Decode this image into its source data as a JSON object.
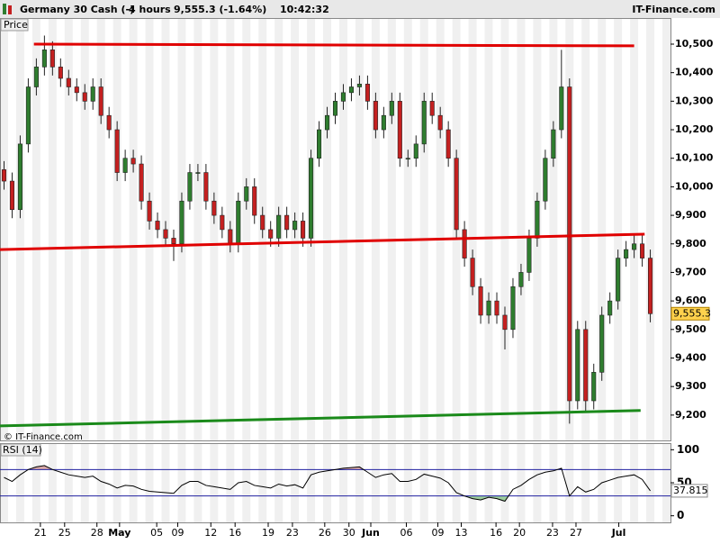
{
  "chart_data": {
    "type": "candlestick",
    "header": {
      "instrument": "Germany 30 Cash (-)",
      "interval": "4 hours",
      "change": "9,555.3 (-1.64%)",
      "time": "10:42:32",
      "site": "IT-Finance.com"
    },
    "panel_label": "Price",
    "watermark": "© IT-Finance.com",
    "up_color": "#2f7d2f",
    "down_color": "#c42020",
    "xlim": [
      0,
      83
    ],
    "xticks": [
      {
        "value": 5.0,
        "label": "21"
      },
      {
        "value": 8.0,
        "label": "25"
      },
      {
        "value": 12.0,
        "label": "28"
      },
      {
        "value": 14.8,
        "label": "May"
      },
      {
        "value": 19.4,
        "label": "05"
      },
      {
        "value": 22.0,
        "label": "09"
      },
      {
        "value": 26.1,
        "label": "12"
      },
      {
        "value": 29.1,
        "label": "16"
      },
      {
        "value": 33.2,
        "label": "19"
      },
      {
        "value": 36.2,
        "label": "23"
      },
      {
        "value": 40.2,
        "label": "26"
      },
      {
        "value": 43.2,
        "label": "30"
      },
      {
        "value": 45.9,
        "label": "Jun"
      },
      {
        "value": 50.3,
        "label": "06"
      },
      {
        "value": 54.2,
        "label": "09"
      },
      {
        "value": 57.1,
        "label": "13"
      },
      {
        "value": 61.4,
        "label": "16"
      },
      {
        "value": 64.3,
        "label": "20"
      },
      {
        "value": 68.4,
        "label": "23"
      },
      {
        "value": 71.3,
        "label": "27"
      },
      {
        "value": 76.6,
        "label": "Jul"
      }
    ],
    "ylim": [
      9108,
      10541
    ],
    "yticks": [
      {
        "value": 9200,
        "label": "9,200"
      },
      {
        "value": 9300,
        "label": "9,300"
      },
      {
        "value": 9400,
        "label": "9,400"
      },
      {
        "value": 9500,
        "label": "9,500"
      },
      {
        "value": 9600,
        "label": "9,600"
      },
      {
        "value": 9700,
        "label": "9,700"
      },
      {
        "value": 9800,
        "label": "9,800"
      },
      {
        "value": 9900,
        "label": "9,900"
      },
      {
        "value": 10000,
        "label": "10,000"
      },
      {
        "value": 10100,
        "label": "10,100"
      },
      {
        "value": 10200,
        "label": "10,200"
      },
      {
        "value": 10300,
        "label": "10,300"
      },
      {
        "value": 10400,
        "label": "10,400"
      },
      {
        "value": 10500,
        "label": "10,500"
      }
    ],
    "open": [
      10060,
      10020,
      9920,
      10150,
      10350,
      10420,
      10480,
      10420,
      10380,
      10350,
      10330,
      10300,
      10350,
      10250,
      10200,
      10050,
      10100,
      10080,
      9950,
      9880,
      9850,
      9820,
      9800,
      9950,
      10050,
      10050,
      9950,
      9900,
      9850,
      9800,
      9950,
      10000,
      9900,
      9850,
      9820,
      9900,
      9850,
      9880,
      9820,
      10100,
      10200,
      10250,
      10300,
      10330,
      10350,
      10360,
      10300,
      10200,
      10250,
      10300,
      10100,
      10100,
      10150,
      10300,
      10250,
      10200,
      10100,
      9850,
      9750,
      9650,
      9550,
      9600,
      9550,
      9500,
      9650,
      9700,
      9820,
      9950,
      10100,
      10200,
      10350,
      9250,
      9500,
      9250,
      9350,
      9550,
      9600,
      9750,
      9780,
      9800,
      9750
    ],
    "high": [
      10090,
      10050,
      10180,
      10380,
      10450,
      10530,
      10510,
      10450,
      10410,
      10380,
      10360,
      10380,
      10380,
      10280,
      10230,
      10130,
      10130,
      10110,
      9980,
      9910,
      9880,
      9850,
      9980,
      10080,
      10080,
      10080,
      9980,
      9930,
      9880,
      9980,
      10030,
      10030,
      9930,
      9880,
      9930,
      9930,
      9910,
      9910,
      10130,
      10230,
      10280,
      10330,
      10360,
      10380,
      10390,
      10390,
      10330,
      10280,
      10330,
      10330,
      10130,
      10180,
      10330,
      10330,
      10280,
      10230,
      10130,
      9880,
      9780,
      9680,
      9630,
      9630,
      9580,
      9680,
      9730,
      9850,
      9980,
      10130,
      10230,
      10480,
      10380,
      9530,
      9530,
      9380,
      9580,
      9630,
      9780,
      9810,
      9830,
      9830,
      9780
    ],
    "low": [
      9990,
      9890,
      9890,
      10120,
      10320,
      10390,
      10390,
      10350,
      10320,
      10300,
      10270,
      10270,
      10220,
      10170,
      10020,
      10020,
      10050,
      9920,
      9850,
      9820,
      9790,
      9740,
      9770,
      9920,
      10020,
      9920,
      9870,
      9820,
      9770,
      9770,
      9920,
      9870,
      9820,
      9790,
      9790,
      9820,
      9820,
      9790,
      9790,
      10070,
      10170,
      10220,
      10270,
      10300,
      10320,
      10270,
      10170,
      10170,
      10220,
      10070,
      10070,
      10070,
      10120,
      10220,
      10170,
      10070,
      9820,
      9720,
      9620,
      9520,
      9520,
      9520,
      9430,
      9470,
      9620,
      9670,
      9790,
      9920,
      10070,
      10170,
      9170,
      9220,
      9210,
      9220,
      9320,
      9520,
      9570,
      9720,
      9750,
      9720,
      9525
    ],
    "close": [
      10020,
      9920,
      10150,
      10350,
      10420,
      10480,
      10420,
      10380,
      10350,
      10330,
      10300,
      10350,
      10250,
      10200,
      10050,
      10100,
      10080,
      9950,
      9880,
      9850,
      9820,
      9800,
      9950,
      10050,
      10050,
      9950,
      9900,
      9850,
      9800,
      9950,
      10000,
      9900,
      9850,
      9820,
      9900,
      9850,
      9880,
      9820,
      10100,
      10200,
      10250,
      10300,
      10330,
      10350,
      10360,
      10300,
      10200,
      10250,
      10300,
      10100,
      10100,
      10150,
      10300,
      10250,
      10200,
      10100,
      9850,
      9750,
      9650,
      9550,
      9600,
      9550,
      9500,
      9650,
      9700,
      9820,
      9950,
      10100,
      10200,
      10350,
      9250,
      9500,
      9250,
      9350,
      9550,
      9600,
      9750,
      9780,
      9800,
      9750,
      9555.3
    ],
    "last_price": {
      "value": 9555.3,
      "label": "9,555.3"
    },
    "lines": [
      {
        "color": "#e00000",
        "x": [
          4.2,
          78.5
        ],
        "y": [
          10500,
          10494
        ]
      },
      {
        "color": "#e00000",
        "x": [
          0,
          79.8
        ],
        "y": [
          9780,
          9834
        ]
      },
      {
        "color": "#1a8a1a",
        "x": [
          0,
          79.3
        ],
        "y": [
          9162,
          9216
        ]
      }
    ],
    "rsi": {
      "label": "RSI (14)",
      "ylim": [
        -10,
        110
      ],
      "yticks": [
        0,
        50,
        100
      ],
      "levels": [
        30,
        70
      ],
      "values": [
        58,
        52,
        62,
        70,
        74,
        76,
        70,
        66,
        62,
        60,
        58,
        60,
        52,
        48,
        42,
        46,
        45,
        40,
        37,
        36,
        35,
        34,
        46,
        52,
        52,
        46,
        44,
        42,
        40,
        50,
        52,
        46,
        44,
        42,
        48,
        45,
        47,
        42,
        62,
        66,
        68,
        70,
        72,
        73,
        74,
        66,
        58,
        62,
        64,
        52,
        52,
        55,
        63,
        60,
        57,
        50,
        35,
        30,
        26,
        24,
        28,
        26,
        22,
        40,
        46,
        55,
        62,
        66,
        68,
        72,
        30,
        44,
        36,
        40,
        50,
        54,
        58,
        60,
        62,
        55,
        37.815
      ],
      "last_label": "37.815"
    }
  }
}
